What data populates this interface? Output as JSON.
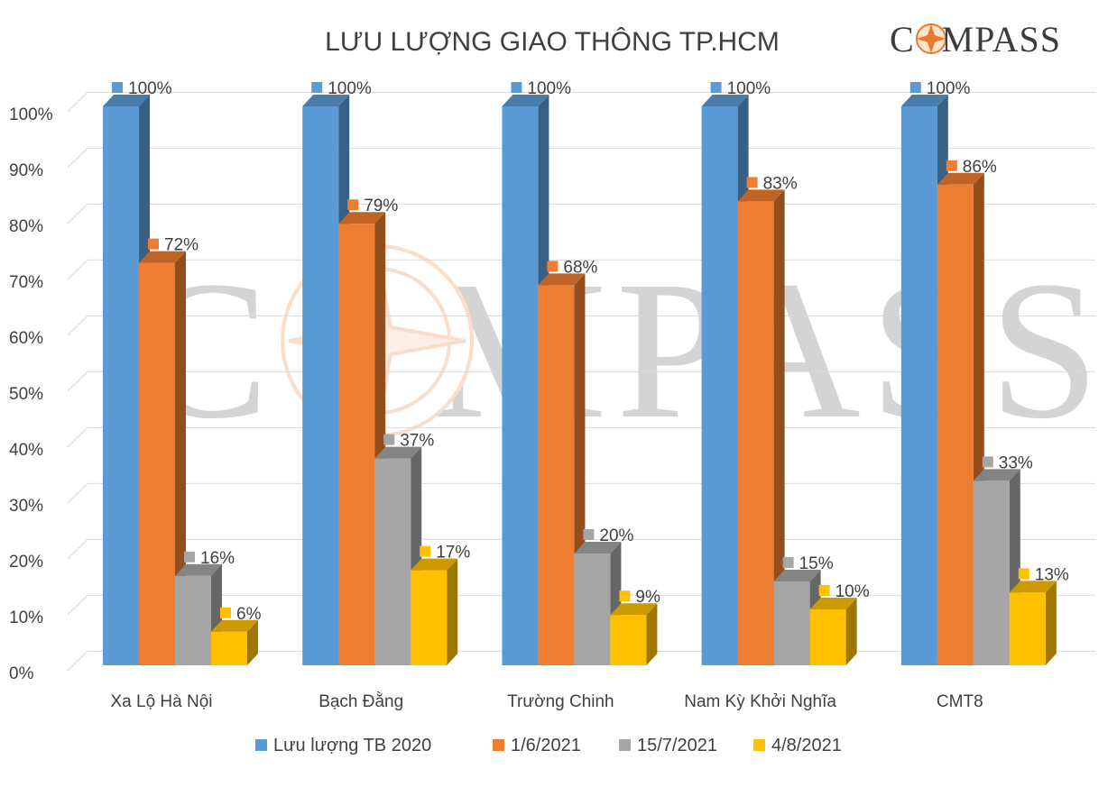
{
  "brand": {
    "name": "COMPASS"
  },
  "chart_data": {
    "type": "bar",
    "title": "LƯU LƯỢNG GIAO THÔNG TP.HCM",
    "categories": [
      "Xa Lộ Hà Nội",
      "Bạch Đằng",
      "Trường Chinh",
      "Nam Kỳ Khởi Nghĩa",
      "CMT8"
    ],
    "series": [
      {
        "name": "Lưu lượng TB 2020",
        "color": "#5B9BD5",
        "values": [
          100,
          100,
          100,
          100,
          100
        ]
      },
      {
        "name": "1/6/2021",
        "color": "#ED7D31",
        "values": [
          72,
          79,
          68,
          83,
          86
        ]
      },
      {
        "name": "15/7/2021",
        "color": "#A5A5A5",
        "values": [
          16,
          37,
          20,
          15,
          33
        ]
      },
      {
        "name": "4/8/2021",
        "color": "#FFC000",
        "values": [
          6,
          17,
          9,
          10,
          13
        ]
      }
    ],
    "y_ticks": [
      "0%",
      "10%",
      "20%",
      "30%",
      "40%",
      "50%",
      "60%",
      "70%",
      "80%",
      "90%",
      "100%"
    ],
    "value_suffix": "%",
    "ylim": [
      0,
      100
    ],
    "grid": true,
    "legend_position": "bottom",
    "style": "3d-clustered-column"
  }
}
